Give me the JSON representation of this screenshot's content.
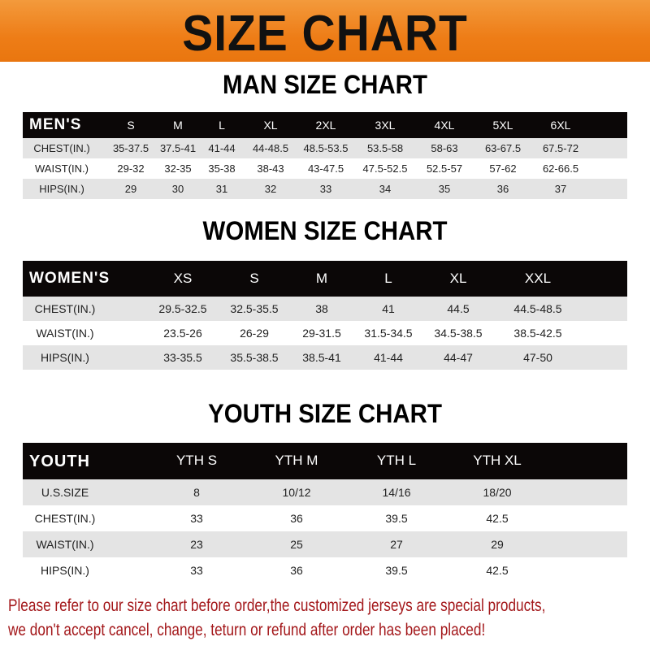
{
  "title": "SIZE CHART",
  "men": {
    "title": "MAN SIZE CHART",
    "corner": "MEN'S",
    "sizes": [
      "S",
      "M",
      "L",
      "XL",
      "2XL",
      "3XL",
      "4XL",
      "5XL",
      "6XL"
    ],
    "rows": [
      {
        "label": "CHEST(IN.)",
        "values": [
          "35-37.5",
          "37.5-41",
          "41-44",
          "44-48.5",
          "48.5-53.5",
          "53.5-58",
          "58-63",
          "63-67.5",
          "67.5-72"
        ]
      },
      {
        "label": "WAIST(IN.)",
        "values": [
          "29-32",
          "32-35",
          "35-38",
          "38-43",
          "43-47.5",
          "47.5-52.5",
          "52.5-57",
          "57-62",
          "62-66.5"
        ]
      },
      {
        "label": "HIPS(IN.)",
        "values": [
          "29",
          "30",
          "31",
          "32",
          "33",
          "34",
          "35",
          "36",
          "37"
        ]
      }
    ]
  },
  "women": {
    "title": "WOMEN SIZE CHART",
    "corner": "WOMEN'S",
    "sizes": [
      "XS",
      "S",
      "M",
      "L",
      "XL",
      "XXL"
    ],
    "rows": [
      {
        "label": "CHEST(IN.)",
        "values": [
          "29.5-32.5",
          "32.5-35.5",
          "38",
          "41",
          "44.5",
          "44.5-48.5"
        ]
      },
      {
        "label": "WAIST(IN.)",
        "values": [
          "23.5-26",
          "26-29",
          "29-31.5",
          "31.5-34.5",
          "34.5-38.5",
          "38.5-42.5"
        ]
      },
      {
        "label": "HIPS(IN.)",
        "values": [
          "33-35.5",
          "35.5-38.5",
          "38.5-41",
          "41-44",
          "44-47",
          "47-50"
        ]
      }
    ]
  },
  "youth": {
    "title": "YOUTH SIZE CHART",
    "corner": "YOUTH",
    "sizes": [
      "YTH S",
      "YTH M",
      "YTH L",
      "YTH XL"
    ],
    "rows": [
      {
        "label": "U.S.SIZE",
        "values": [
          "8",
          "10/12",
          "14/16",
          "18/20"
        ]
      },
      {
        "label": "CHEST(IN.)",
        "values": [
          "33",
          "36",
          "39.5",
          "42.5"
        ]
      },
      {
        "label": "WAIST(IN.)",
        "values": [
          "23",
          "25",
          "27",
          "29"
        ]
      },
      {
        "label": "HIPS(IN.)",
        "values": [
          "33",
          "36",
          "39.5",
          "42.5"
        ]
      }
    ]
  },
  "notice": {
    "line1": "Please refer to our size chart before order,the customized jerseys are special products,",
    "line2": "we don't accept cancel, change, teturn or refund after order has been placed!"
  },
  "colors": {
    "banner": "#ee7d17",
    "header_row": "#0b0707",
    "stripe": "#e4e4e4",
    "notice": "#a3171a"
  }
}
